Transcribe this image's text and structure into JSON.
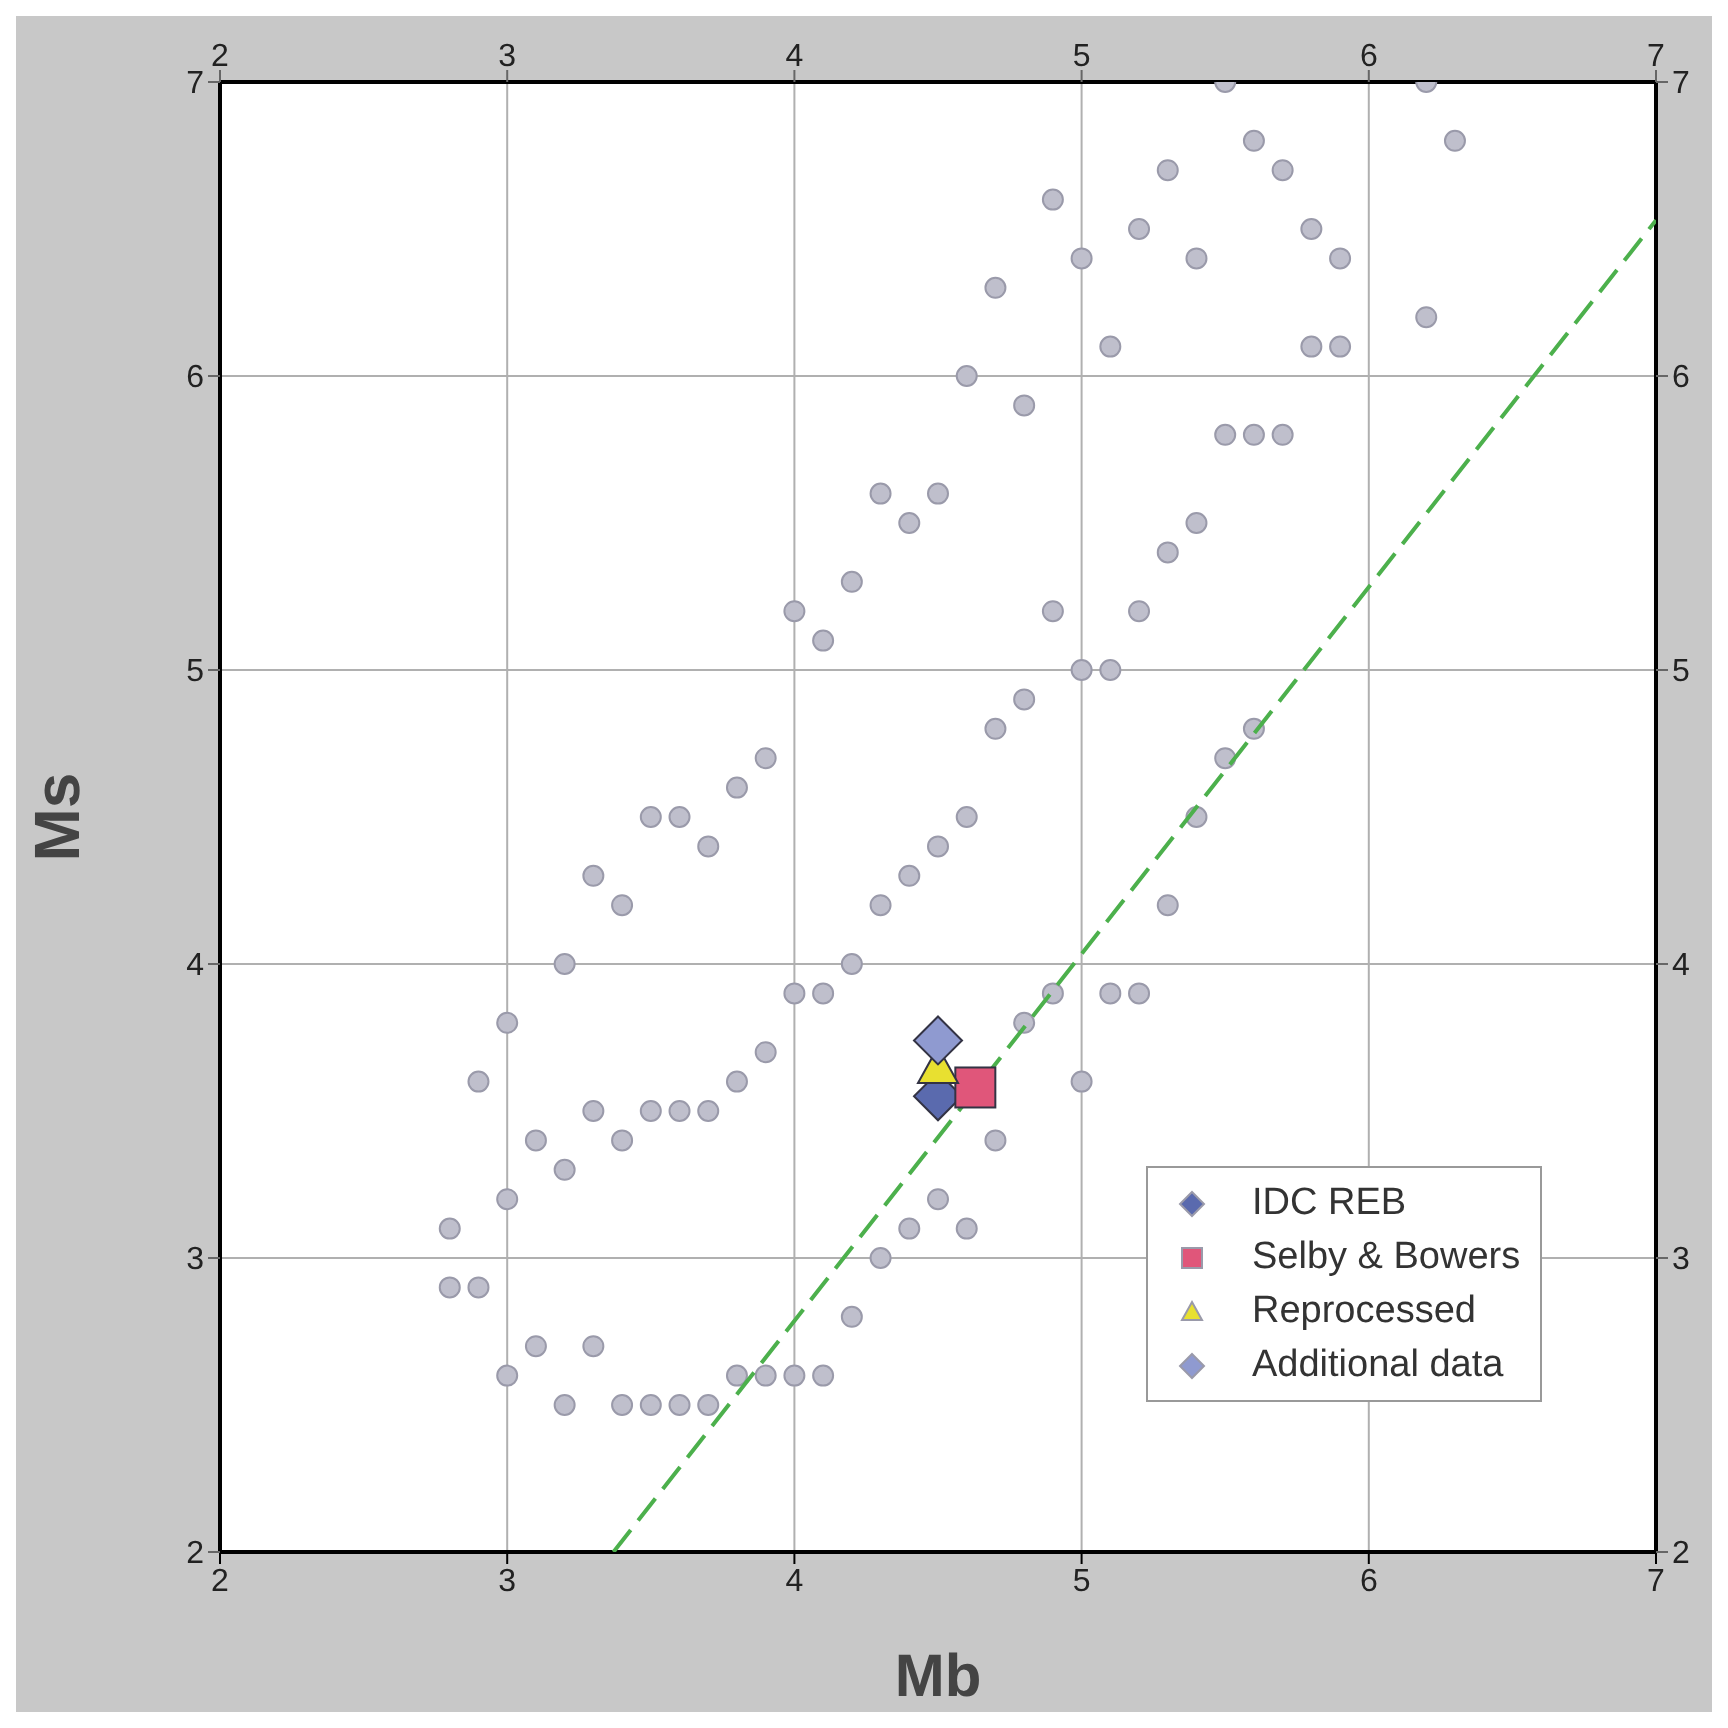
{
  "chart_data": {
    "type": "scatter",
    "xlabel": "Mb",
    "ylabel": "Ms",
    "xlim": [
      2,
      7
    ],
    "xticks": [
      2,
      3,
      4,
      5,
      6,
      7
    ],
    "x2lim": [
      2,
      7
    ],
    "x2ticks": [
      2,
      3,
      4,
      5,
      6,
      7
    ],
    "ylim": [
      2,
      7
    ],
    "yticks": [
      2,
      3,
      4,
      5,
      6,
      7
    ],
    "y2lim": [
      2,
      7
    ],
    "y2ticks": [
      2,
      3,
      4,
      5,
      6,
      7
    ],
    "grid": true,
    "legend": "bottom right",
    "series": [
      {
        "type": "scatter",
        "marker": "circle",
        "color": "#bfbfcc",
        "x": [
          2.8,
          2.8,
          2.9,
          2.9,
          3.0,
          3.0,
          3.0,
          3.1,
          3.1,
          3.2,
          3.2,
          3.2,
          3.3,
          3.3,
          3.3,
          3.4,
          3.4,
          3.4,
          3.5,
          3.5,
          3.5,
          3.6,
          3.6,
          3.6,
          3.7,
          3.7,
          3.7,
          3.8,
          3.8,
          3.8,
          3.9,
          3.9,
          3.9,
          4.0,
          4.0,
          4.0,
          4.1,
          4.1,
          4.1,
          4.2,
          4.2,
          4.2,
          4.3,
          4.3,
          4.3,
          4.4,
          4.4,
          4.4,
          4.5,
          4.5,
          4.5,
          4.6,
          4.6,
          4.6,
          4.7,
          4.7,
          4.7,
          4.8,
          4.8,
          4.8,
          4.9,
          4.9,
          4.9,
          5.0,
          5.0,
          5.0,
          5.1,
          5.1,
          5.1,
          5.2,
          5.2,
          5.2,
          5.3,
          5.3,
          5.3,
          5.4,
          5.4,
          5.4,
          5.5,
          5.5,
          5.5,
          5.6,
          5.6,
          5.6,
          5.7,
          5.7,
          5.8,
          5.8,
          5.9,
          5.9,
          6.2,
          6.2,
          6.3
        ],
        "values": [
          2.9,
          3.1,
          2.9,
          3.6,
          2.6,
          3.2,
          3.8,
          2.7,
          3.4,
          2.5,
          3.3,
          4.0,
          2.7,
          3.5,
          4.3,
          2.5,
          3.4,
          4.2,
          2.5,
          3.5,
          4.5,
          2.5,
          3.5,
          4.5,
          2.5,
          3.5,
          4.4,
          2.6,
          3.6,
          4.6,
          2.6,
          3.7,
          4.7,
          2.6,
          3.9,
          5.2,
          2.6,
          3.9,
          5.1,
          2.8,
          4.0,
          5.3,
          3.0,
          4.2,
          5.6,
          3.1,
          4.3,
          5.5,
          3.2,
          4.4,
          5.6,
          3.1,
          4.5,
          6.0,
          3.4,
          4.8,
          6.3,
          3.8,
          4.9,
          5.9,
          3.9,
          5.2,
          6.6,
          3.6,
          5.0,
          6.4,
          3.9,
          5.0,
          6.1,
          3.9,
          5.2,
          6.5,
          4.2,
          5.4,
          6.7,
          4.5,
          5.5,
          6.4,
          4.7,
          5.8,
          7.0,
          4.8,
          5.8,
          6.8,
          5.8,
          6.7,
          6.1,
          6.5,
          6.1,
          6.4,
          6.2,
          7.0,
          6.8
        ]
      },
      {
        "type": "line",
        "line_style": "dashed",
        "marker": "none",
        "color": "#4cb04c",
        "x": [
          3.37,
          7
        ],
        "values": [
          2,
          6.53
        ]
      },
      {
        "type": "scatter",
        "name": "IDC REB",
        "marker": "diamond",
        "color": "#5a6aae",
        "x": [
          4.5
        ],
        "values": [
          3.55
        ]
      },
      {
        "type": "scatter",
        "name": "Selby & Bowers",
        "marker": "square",
        "color": "#e0567a",
        "x": [
          4.63
        ],
        "values": [
          3.58
        ]
      },
      {
        "type": "scatter",
        "name": "Reprocessed",
        "marker": "triangle",
        "color": "#e8e030",
        "x": [
          4.5
        ],
        "values": [
          3.65
        ]
      },
      {
        "type": "scatter",
        "name": "Additional data",
        "marker": "diamond",
        "color": "#8f9ad0",
        "x": [
          4.5
        ],
        "values": [
          3.74
        ]
      }
    ]
  }
}
